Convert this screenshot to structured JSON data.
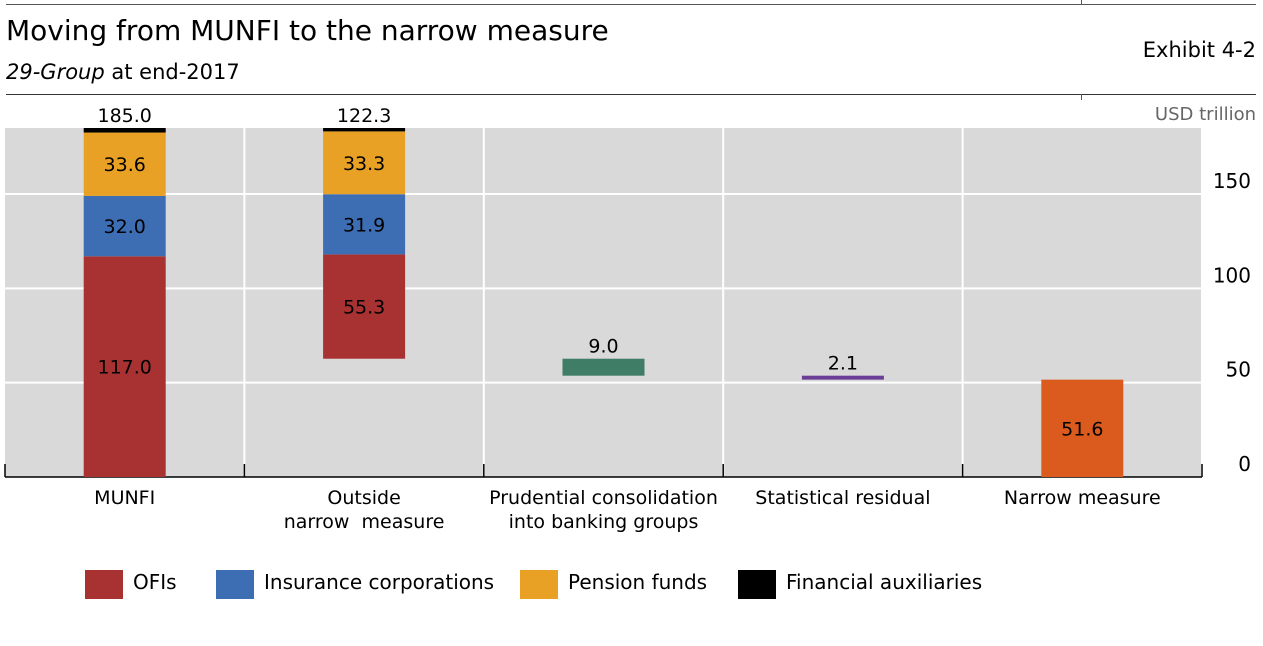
{
  "header": {
    "title": "Moving from MUNFI to the narrow measure",
    "subtitle_group": "29-Group",
    "subtitle_rest": " at end-2017",
    "exhibit": "Exhibit 4-2",
    "unit": "USD trillion"
  },
  "colors": {
    "OFIs": "#a83232",
    "Insurance corporations": "#3d6eb4",
    "Pension funds": "#e8a125",
    "Financial auxiliaries": "#000000",
    "Prudential consolidation": "#3f7d66",
    "Statistical residual": "#6a3d96",
    "Narrow measure": "#db5a1d",
    "plot_background": "#d9d9d9"
  },
  "legend": [
    {
      "label": "OFIs",
      "color": "#a83232"
    },
    {
      "label": "Insurance corporations",
      "color": "#3d6eb4"
    },
    {
      "label": "Pension funds",
      "color": "#e8a125"
    },
    {
      "label": "Financial auxiliaries",
      "color": "#000000"
    }
  ],
  "chart_data": {
    "type": "bar",
    "subtype": "waterfall",
    "title": "Moving from MUNFI to the narrow measure",
    "subtitle": "29-Group at end-2017",
    "ylabel": "USD trillion",
    "ylim": [
      0,
      185
    ],
    "yticks": [
      0,
      50,
      100,
      150
    ],
    "y_axis_side": "right",
    "grid": true,
    "legend_position": "bottom",
    "categories": [
      "MUNFI",
      "Outside narrow  measure",
      "Prudential consolidation into banking groups",
      "Statistical residual",
      "Narrow measure"
    ],
    "category_lines": [
      [
        "MUNFI"
      ],
      [
        "Outside",
        "narrow  measure"
      ],
      [
        "Prudential consolidation",
        "into banking groups"
      ],
      [
        "Statistical residual"
      ],
      [
        "Narrow measure"
      ]
    ],
    "bars": [
      {
        "category": "MUNFI",
        "total": "185.0",
        "base": 0,
        "segments": [
          {
            "series": "OFIs",
            "value": 117.0,
            "label": "117.0"
          },
          {
            "series": "Insurance corporations",
            "value": 32.0,
            "label": "32.0"
          },
          {
            "series": "Pension funds",
            "value": 33.6,
            "label": "33.6"
          },
          {
            "series": "Financial auxiliaries",
            "value": 2.4,
            "label": ""
          }
        ]
      },
      {
        "category": "Outside narrow measure",
        "total": "122.3",
        "base": 62.7,
        "segments": [
          {
            "series": "OFIs",
            "value": 55.3,
            "label": "55.3"
          },
          {
            "series": "Insurance corporations",
            "value": 31.9,
            "label": "31.9"
          },
          {
            "series": "Pension funds",
            "value": 33.3,
            "label": "33.3"
          },
          {
            "series": "Financial auxiliaries",
            "value": 1.8,
            "label": ""
          }
        ]
      },
      {
        "category": "Prudential consolidation into banking groups",
        "total": "9.0",
        "base": 53.7,
        "segments": [
          {
            "series": "Prudential consolidation",
            "value": 9.0,
            "label": ""
          }
        ]
      },
      {
        "category": "Statistical residual",
        "total": "2.1",
        "base": 51.6,
        "segments": [
          {
            "series": "Statistical residual",
            "value": 2.1,
            "label": ""
          }
        ]
      },
      {
        "category": "Narrow measure",
        "total": "",
        "base": 0,
        "segments": [
          {
            "series": "Narrow measure",
            "value": 51.6,
            "label": "51.6"
          }
        ]
      }
    ]
  }
}
